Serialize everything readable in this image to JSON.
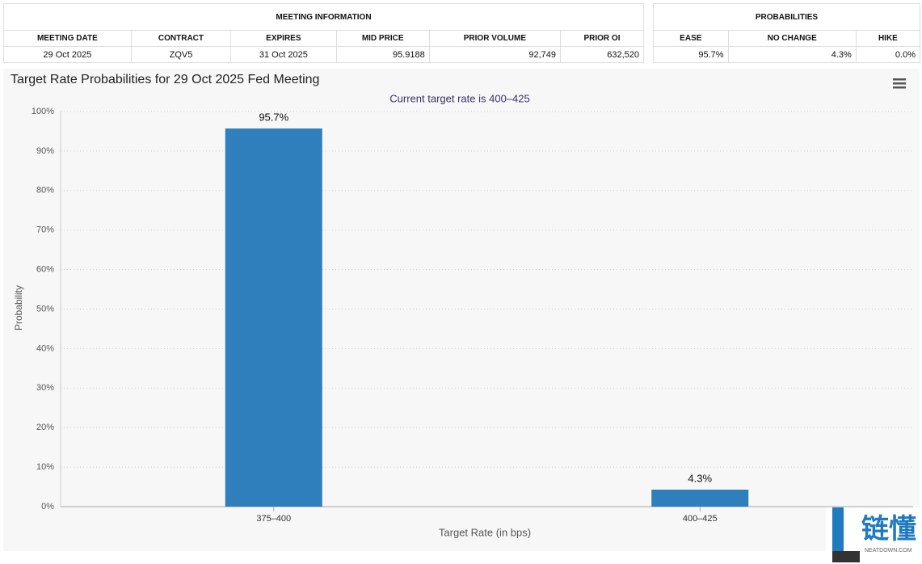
{
  "meeting_info": {
    "title": "MEETING INFORMATION",
    "headers": [
      "MEETING DATE",
      "CONTRACT",
      "EXPIRES",
      "MID PRICE",
      "PRIOR VOLUME",
      "PRIOR OI"
    ],
    "row": [
      "29 Oct 2025",
      "ZQV5",
      "31 Oct 2025",
      "95.9188",
      "92,749",
      "632,520"
    ]
  },
  "probabilities": {
    "title": "PROBABILITIES",
    "headers": [
      "EASE",
      "NO CHANGE",
      "HIKE"
    ],
    "row": [
      "95.7%",
      "4.3%",
      "0.0%"
    ]
  },
  "chart_data": {
    "type": "bar",
    "title": "Target Rate Probabilities for 29 Oct 2025 Fed Meeting",
    "subtitle": "Current target rate is 400–425",
    "categories": [
      "375–400",
      "400–425"
    ],
    "values": [
      95.7,
      4.3
    ],
    "value_labels": [
      "95.7%",
      "4.3%"
    ],
    "color": "#2e7fbb",
    "xlabel": "Target Rate (in bps)",
    "ylabel": "Probability",
    "ylim": [
      0,
      100
    ],
    "yticks": [
      {
        "value": 0,
        "label": "0%"
      },
      {
        "value": 10,
        "label": "10%"
      },
      {
        "value": 20,
        "label": "20%"
      },
      {
        "value": 30,
        "label": "30%"
      },
      {
        "value": 40,
        "label": "40%"
      },
      {
        "value": 50,
        "label": "50%"
      },
      {
        "value": 60,
        "label": "60%"
      },
      {
        "value": 70,
        "label": "70%"
      },
      {
        "value": 80,
        "label": "80%"
      },
      {
        "value": 90,
        "label": "90%"
      },
      {
        "value": 100,
        "label": "100%"
      }
    ],
    "grid": true
  },
  "watermark": {
    "text": "链懂",
    "sub": "NEATDOWN.COM"
  }
}
